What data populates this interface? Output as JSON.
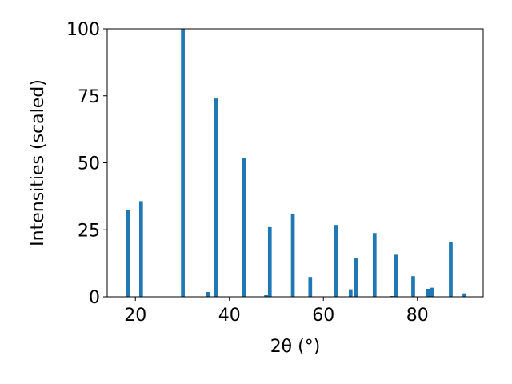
{
  "chart_data": {
    "type": "bar",
    "title": "",
    "xlabel": "2θ (°)",
    "ylabel": "Intensities (scaled)",
    "xlim": [
      14.0,
      94.0
    ],
    "ylim": [
      0,
      100
    ],
    "grid": false,
    "legend": "none",
    "x_ticks": [
      20,
      40,
      60,
      80
    ],
    "y_ticks": [
      0,
      25,
      50,
      75,
      100
    ],
    "bar_width": 0.8,
    "bar_color": "#1f77b4",
    "series": [
      {
        "x": [
          18.4,
          21.2,
          30.1,
          35.5,
          37.1,
          43.1,
          47.8,
          48.6,
          53.5,
          57.2,
          62.7,
          65.8,
          66.9,
          70.9,
          74.5,
          75.4,
          79.1,
          82.2,
          83.1,
          87.1,
          90.0
        ],
        "y": [
          32.5,
          35.7,
          100.0,
          1.8,
          74.0,
          51.7,
          0.6,
          26.0,
          31.0,
          7.4,
          26.8,
          2.8,
          14.3,
          23.8,
          0.3,
          15.7,
          7.7,
          3.0,
          3.4,
          20.4,
          1.3
        ]
      }
    ]
  }
}
